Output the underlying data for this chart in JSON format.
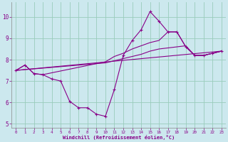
{
  "xlabel": "Windchill (Refroidissement éolien,°C)",
  "background_color": "#cce8ee",
  "line_color": "#880088",
  "grid_color": "#99ccbb",
  "xlim": [
    -0.5,
    23.5
  ],
  "ylim": [
    4.8,
    10.7
  ],
  "yticks": [
    5,
    6,
    7,
    8,
    9,
    10
  ],
  "xticks": [
    0,
    1,
    2,
    3,
    4,
    5,
    6,
    7,
    8,
    9,
    10,
    11,
    12,
    13,
    14,
    15,
    16,
    17,
    18,
    19,
    20,
    21,
    22,
    23
  ],
  "series": [
    {
      "x": [
        0,
        1,
        2,
        3,
        4,
        5,
        6,
        7,
        8,
        9,
        10,
        11,
        12,
        13,
        14,
        15,
        16,
        17,
        18,
        19,
        20,
        21,
        22,
        23
      ],
      "y": [
        7.5,
        7.75,
        7.35,
        7.3,
        7.1,
        7.0,
        6.05,
        5.75,
        5.75,
        5.45,
        5.35,
        6.6,
        8.2,
        8.9,
        9.4,
        10.25,
        9.8,
        9.3,
        9.3,
        8.6,
        8.2,
        8.2,
        8.3,
        8.4
      ],
      "marker": true
    },
    {
      "x": [
        0,
        1,
        2,
        3,
        10,
        11,
        12,
        13,
        14,
        15,
        16,
        17,
        18,
        19,
        20,
        21,
        22,
        23
      ],
      "y": [
        7.5,
        7.75,
        7.35,
        7.3,
        7.9,
        8.15,
        8.3,
        8.5,
        8.65,
        8.8,
        8.9,
        9.3,
        9.3,
        8.6,
        8.2,
        8.2,
        8.3,
        8.4
      ],
      "marker": false
    },
    {
      "x": [
        0,
        10,
        11,
        12,
        13,
        14,
        15,
        16,
        17,
        18,
        19,
        20,
        21,
        22,
        23
      ],
      "y": [
        7.5,
        7.85,
        7.95,
        8.05,
        8.15,
        8.25,
        8.4,
        8.5,
        8.55,
        8.6,
        8.65,
        8.2,
        8.2,
        8.3,
        8.4
      ],
      "marker": false
    },
    {
      "x": [
        0,
        23
      ],
      "y": [
        7.5,
        8.4
      ],
      "marker": false
    }
  ]
}
